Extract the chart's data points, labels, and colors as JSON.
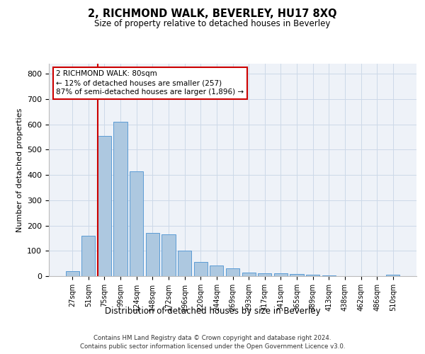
{
  "title": "2, RICHMOND WALK, BEVERLEY, HU17 8XQ",
  "subtitle": "Size of property relative to detached houses in Beverley",
  "xlabel": "Distribution of detached houses by size in Beverley",
  "ylabel": "Number of detached properties",
  "bins": [
    "27sqm",
    "51sqm",
    "75sqm",
    "99sqm",
    "124sqm",
    "148sqm",
    "172sqm",
    "196sqm",
    "220sqm",
    "244sqm",
    "269sqm",
    "293sqm",
    "317sqm",
    "341sqm",
    "365sqm",
    "389sqm",
    "413sqm",
    "438sqm",
    "462sqm",
    "486sqm",
    "510sqm"
  ],
  "values": [
    20,
    160,
    555,
    610,
    415,
    170,
    165,
    100,
    55,
    42,
    32,
    15,
    12,
    10,
    8,
    5,
    4,
    1,
    1,
    1,
    5
  ],
  "bar_color": "#adc8e0",
  "bar_edge_color": "#5b9bd5",
  "vline_color": "#cc0000",
  "annotation_text": "2 RICHMOND WALK: 80sqm\n← 12% of detached houses are smaller (257)\n87% of semi-detached houses are larger (1,896) →",
  "annotation_box_color": "#cc0000",
  "ylim": [
    0,
    840
  ],
  "yticks": [
    0,
    100,
    200,
    300,
    400,
    500,
    600,
    700,
    800
  ],
  "grid_color": "#ccd9e8",
  "footer_line1": "Contains HM Land Registry data © Crown copyright and database right 2024.",
  "footer_line2": "Contains public sector information licensed under the Open Government Licence v3.0.",
  "bg_color": "#eef2f8"
}
